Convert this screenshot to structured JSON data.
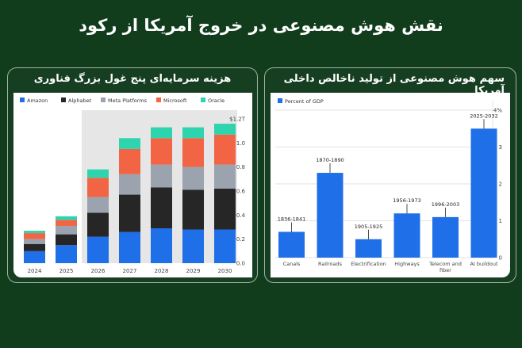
{
  "page": {
    "title": "نقش هوش مصنوعی در خروج آمریکا از رکود"
  },
  "panels": [
    {
      "title": "هزینه سرمایه‌ای پنج غول بزرگ فناوری"
    },
    {
      "title": "سهم هوش مصنوعی از تولید ناخالص داخلی آمریکا"
    }
  ],
  "chart_data": [
    {
      "type": "bar",
      "stacked": true,
      "categories": [
        "2024",
        "2025",
        "2026",
        "2027",
        "2028",
        "2029",
        "2030"
      ],
      "series": [
        {
          "name": "Amazon",
          "color": "#1f6fe8",
          "values": [
            0.1,
            0.15,
            0.22,
            0.26,
            0.29,
            0.28,
            0.28
          ]
        },
        {
          "name": "Alphabet",
          "color": "#262626",
          "values": [
            0.06,
            0.09,
            0.2,
            0.31,
            0.34,
            0.33,
            0.34
          ]
        },
        {
          "name": "Meta Platforms",
          "color": "#9aa3ae",
          "values": [
            0.04,
            0.07,
            0.13,
            0.17,
            0.19,
            0.19,
            0.2
          ]
        },
        {
          "name": "Microsoft",
          "color": "#f26544",
          "values": [
            0.05,
            0.05,
            0.16,
            0.21,
            0.22,
            0.24,
            0.25
          ]
        },
        {
          "name": "Oracle",
          "color": "#2ed4ae",
          "values": [
            0.02,
            0.03,
            0.07,
            0.09,
            0.09,
            0.09,
            0.09
          ]
        }
      ],
      "yticks": [
        "0.0",
        "0.2",
        "0.4",
        "0.6",
        "0.8",
        "1.0",
        "$1.2T"
      ],
      "ylim": [
        0,
        1.2
      ],
      "forecast_from": "2026",
      "legend_position": "top-left",
      "grid": false
    },
    {
      "type": "bar",
      "categories": [
        "Canals",
        "Railroads",
        "Electrification",
        "Highways",
        "Telecom and fiber",
        "AI buildout"
      ],
      "values": [
        0.7,
        2.3,
        0.5,
        1.2,
        1.1,
        3.5
      ],
      "periods": [
        "1836-1841",
        "1870-1890",
        "1905-1925",
        "1956-1973",
        "1996-2003",
        "2025-2032"
      ],
      "color": "#1f6fe8",
      "legend": "Percent of GDP",
      "yticks": [
        "0",
        "1",
        "2",
        "3",
        "4%"
      ],
      "ylim": [
        0,
        4
      ],
      "y_axis_side": "right",
      "legend_position": "top-left",
      "grid": true
    }
  ]
}
